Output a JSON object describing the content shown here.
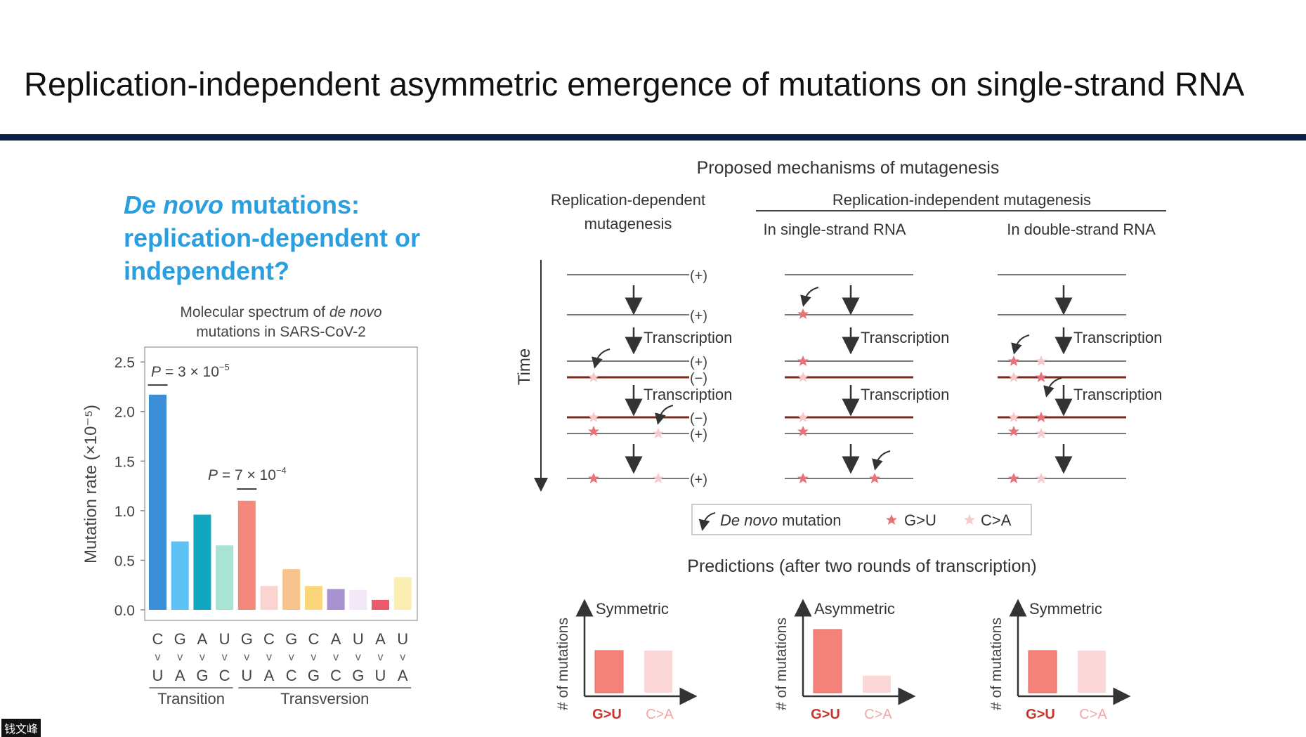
{
  "slide": {
    "title": "Replication-independent asymmetric emergence of mutations on single-strand RNA",
    "question_line1_italic": "De novo",
    "question_line1_rest": " mutations:",
    "question_line2": "replication-dependent or",
    "question_line3": "independent?",
    "watermark": "钱文峰"
  },
  "chart_data": {
    "type": "bar",
    "title_line1_prefix": "Molecular spectrum of ",
    "title_line1_italic": "de novo",
    "title_line2": "mutations in SARS-CoV-2",
    "ylabel": "Mutation rate (×10⁻⁵)",
    "ylim": [
      0,
      2.65
    ],
    "yticks": [
      "0.0",
      "0.5",
      "1.0",
      "1.5",
      "2.0",
      "2.5"
    ],
    "from_bases": [
      "C",
      "G",
      "A",
      "U",
      "G",
      "C",
      "G",
      "C",
      "A",
      "U",
      "A",
      "U"
    ],
    "arrow_glyph": "v",
    "to_bases": [
      "U",
      "A",
      "G",
      "C",
      "U",
      "A",
      "C",
      "G",
      "C",
      "G",
      "U",
      "A"
    ],
    "values": [
      2.17,
      0.69,
      0.96,
      0.65,
      1.1,
      0.24,
      0.41,
      0.24,
      0.21,
      0.2,
      0.1,
      0.33
    ],
    "colors": [
      "#3a8fd6",
      "#5ec2f5",
      "#12a7c0",
      "#a8e3d5",
      "#f4887c",
      "#fbd3d1",
      "#f8c48d",
      "#fbd67b",
      "#a792cf",
      "#f3e8f7",
      "#ea5a6a",
      "#fcedb3"
    ],
    "groups": [
      {
        "label": "Transition",
        "span": [
          0,
          3
        ]
      },
      {
        "label": "Transversion",
        "span": [
          4,
          11
        ]
      }
    ],
    "annotations": [
      {
        "text_prefix": "P",
        "text": " = 3 × 10",
        "sup": "−5",
        "over_bar": 0
      },
      {
        "text_prefix": "P",
        "text": " = 7 × 10",
        "sup": "−4",
        "over_bar": 4
      }
    ]
  },
  "diagram": {
    "header": "Proposed mechanisms of mutagenesis",
    "col1_title_line1": "Replication-dependent",
    "col1_title_line2": "mutagenesis",
    "indep_title": "Replication-independent mutagenesis",
    "col2_title": "In single-strand RNA",
    "col3_title": "In double-strand RNA",
    "time_label": "Time",
    "transcription_label": "Transcription",
    "plus_label": "(+)",
    "minus_label": "(−)",
    "legend": {
      "item1_italic": "De novo",
      "item1_rest": " mutation",
      "item2": "G>U",
      "item3": "C>A"
    },
    "colors": {
      "g_to_u": "#e8727a",
      "c_to_a": "#f7c9cc",
      "minus_strand": "#7a2b1e",
      "plus_strand": "#777777"
    }
  },
  "predictions": {
    "header": "Predictions (after two rounds of transcription)",
    "y_label": "# of mutations",
    "x_g": "G>U",
    "x_c": "C>A",
    "panels": [
      {
        "title": "Symmetric",
        "g_to_u": 1.0,
        "c_to_a": 1.0
      },
      {
        "title": "Asymmetric",
        "g_to_u": 1.0,
        "c_to_a": 0.27
      },
      {
        "title": "Symmetric",
        "g_to_u": 1.0,
        "c_to_a": 1.0
      }
    ]
  }
}
